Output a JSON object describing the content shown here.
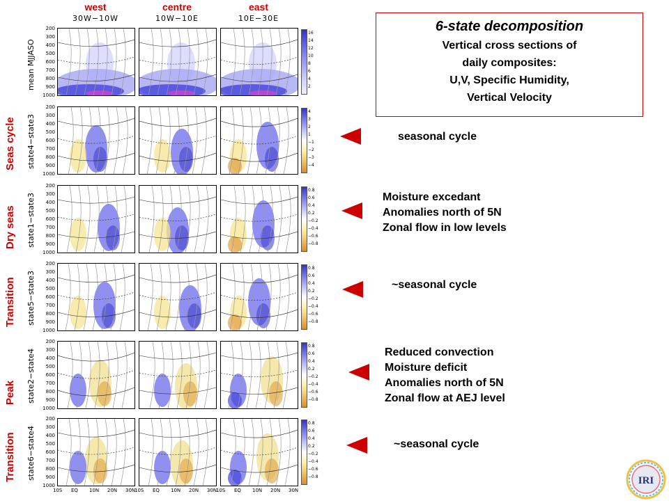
{
  "columns": [
    {
      "name": "west",
      "range": "30W−10W"
    },
    {
      "name": "centre",
      "range": "10W−10E"
    },
    {
      "name": "east",
      "range": "10E−30E"
    }
  ],
  "rows": [
    {
      "label": "",
      "sub": "mean MJJASO",
      "cbar": [
        "16",
        "14",
        "12",
        "10",
        "8",
        "6",
        "4",
        "2"
      ]
    },
    {
      "label": "Seas cycle",
      "sub": "state4−state3",
      "cbar": [
        "4",
        "3",
        "2",
        "1",
        "−1",
        "−2",
        "−3",
        "−4"
      ]
    },
    {
      "label": "Dry seas",
      "sub": "state1−state3",
      "cbar": [
        "0.8",
        "0.6",
        "0.4",
        "0.2",
        "−0.2",
        "−0.4",
        "−0.6",
        "−0.8"
      ]
    },
    {
      "label": "Transition",
      "sub": "state5−state3",
      "cbar": [
        "0.8",
        "0.6",
        "0.4",
        "0.2",
        "−0.2",
        "−0.4",
        "−0.6",
        "−0.8"
      ]
    },
    {
      "label": "Peak",
      "sub": "state2−state4",
      "cbar": [
        "0.8",
        "0.6",
        "0.4",
        "0.2",
        "−0.2",
        "−0.4",
        "−0.6",
        "−0.8"
      ]
    },
    {
      "label": "Transition",
      "sub": "state6−state4",
      "cbar": [
        "0.8",
        "0.6",
        "0.4",
        "0.2",
        "−0.2",
        "−0.4",
        "−0.6",
        "−0.8"
      ]
    }
  ],
  "yticks": [
    "200",
    "300",
    "400",
    "500",
    "600",
    "700",
    "800",
    "900",
    "1000"
  ],
  "xticks": [
    "10S",
    "EQ",
    "10N",
    "20N",
    "30N"
  ],
  "box": {
    "title": "6-state decomposition",
    "lines": [
      "Vertical cross sections of",
      "daily composites:",
      "U,V,  Specific Humidity,",
      "Vertical Velocity"
    ]
  },
  "notes": [
    {
      "lines": [
        "seasonal cycle"
      ]
    },
    {
      "lines": [
        "Moisture excedant",
        "Anomalies north of 5N",
        "Zonal flow in low levels"
      ]
    },
    {
      "lines": [
        "~seasonal cycle"
      ]
    },
    {
      "lines": [
        "Reduced convection",
        "Moisture deficit",
        "Anomalies north of 5N",
        "Zonal flow at AEJ level"
      ]
    },
    {
      "lines": [
        "~seasonal cycle"
      ]
    }
  ],
  "logo_text": "IRI",
  "colors": {
    "accent": "#cc0000",
    "blue": "#6b6bf0",
    "orange": "#e8a040",
    "yellow": "#fff0a0"
  }
}
